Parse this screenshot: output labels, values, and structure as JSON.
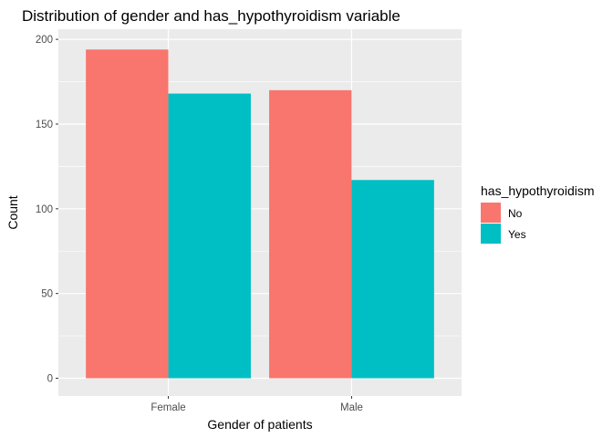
{
  "chart_data": {
    "type": "bar",
    "title": "Distribution of gender and has_hypothyroidism variable",
    "xlabel": "Gender of patients",
    "ylabel": "Count",
    "categories": [
      "Female",
      "Male"
    ],
    "series": [
      {
        "name": "No",
        "values": [
          194,
          170
        ],
        "color": "#F8766D"
      },
      {
        "name": "Yes",
        "values": [
          168,
          117
        ],
        "color": "#00BFC4"
      }
    ],
    "yticks": [
      0,
      50,
      100,
      150,
      200
    ],
    "ylim": [
      -10.5,
      206
    ],
    "grid": true,
    "legend": {
      "title": "has_hypothyroidism",
      "position": "right"
    },
    "panel_background": "#EBEBEB"
  }
}
